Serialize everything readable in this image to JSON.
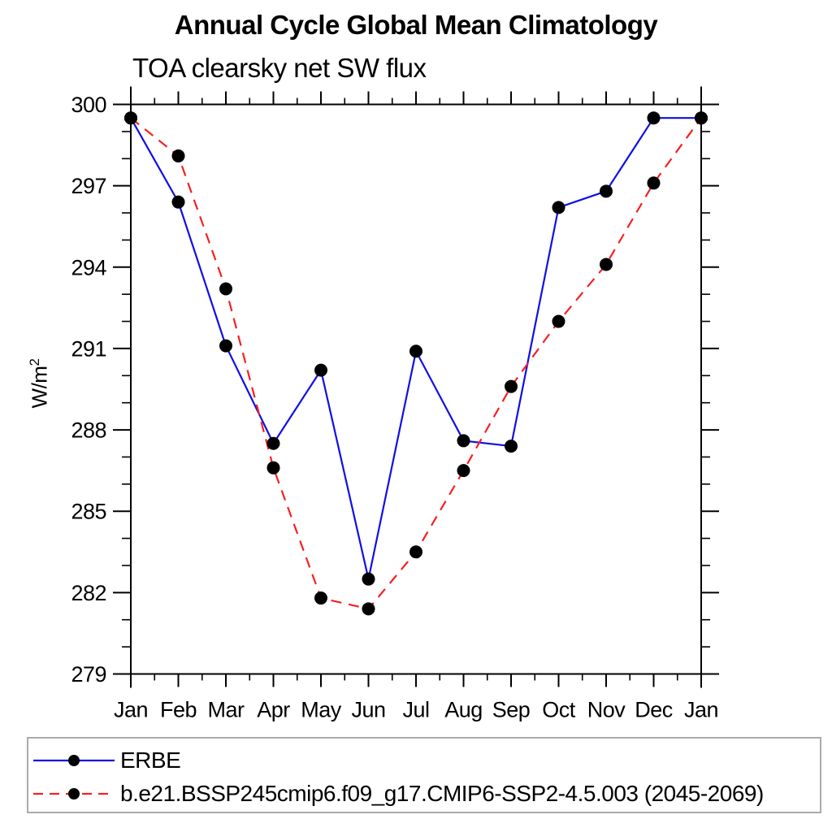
{
  "chart_data": {
    "type": "line",
    "title": "Annual Cycle Global Mean Climatology",
    "subtitle": "TOA clearsky net SW flux",
    "ylabel": {
      "base": "W/m",
      "exp": "2"
    },
    "categories": [
      "Jan",
      "Feb",
      "Mar",
      "Apr",
      "May",
      "Jun",
      "Jul",
      "Aug",
      "Sep",
      "Oct",
      "Nov",
      "Dec",
      "Jan"
    ],
    "series": [
      {
        "name": "ERBE",
        "color": "#0f0fe6",
        "style": "solid",
        "marker": "filled-circle",
        "values": [
          299.5,
          296.4,
          291.1,
          287.5,
          290.2,
          282.5,
          290.9,
          287.6,
          287.4,
          296.2,
          296.8,
          299.5,
          299.5
        ]
      },
      {
        "name": "b.e21.BSSP245cmip6.f09_g17.CMIP6-SSP2-4.5.003 (2045-2069)",
        "color": "#f52020",
        "style": "dashed",
        "marker": "filled-circle",
        "values": [
          299.5,
          298.1,
          293.2,
          286.6,
          281.8,
          281.4,
          283.5,
          286.5,
          289.6,
          292.0,
          294.1,
          297.1,
          299.5
        ]
      }
    ],
    "ylim": [
      279,
      300
    ],
    "yticks_major": [
      300,
      297,
      294,
      291,
      288,
      285,
      282,
      279
    ],
    "ytick_minor_step": 1,
    "xtick_minor": "half-month",
    "marker_color": "#000000",
    "axis_color": "#000000",
    "grid": false,
    "legend_position": "bottom-left"
  },
  "legend": {
    "border_color": "#ababab"
  }
}
